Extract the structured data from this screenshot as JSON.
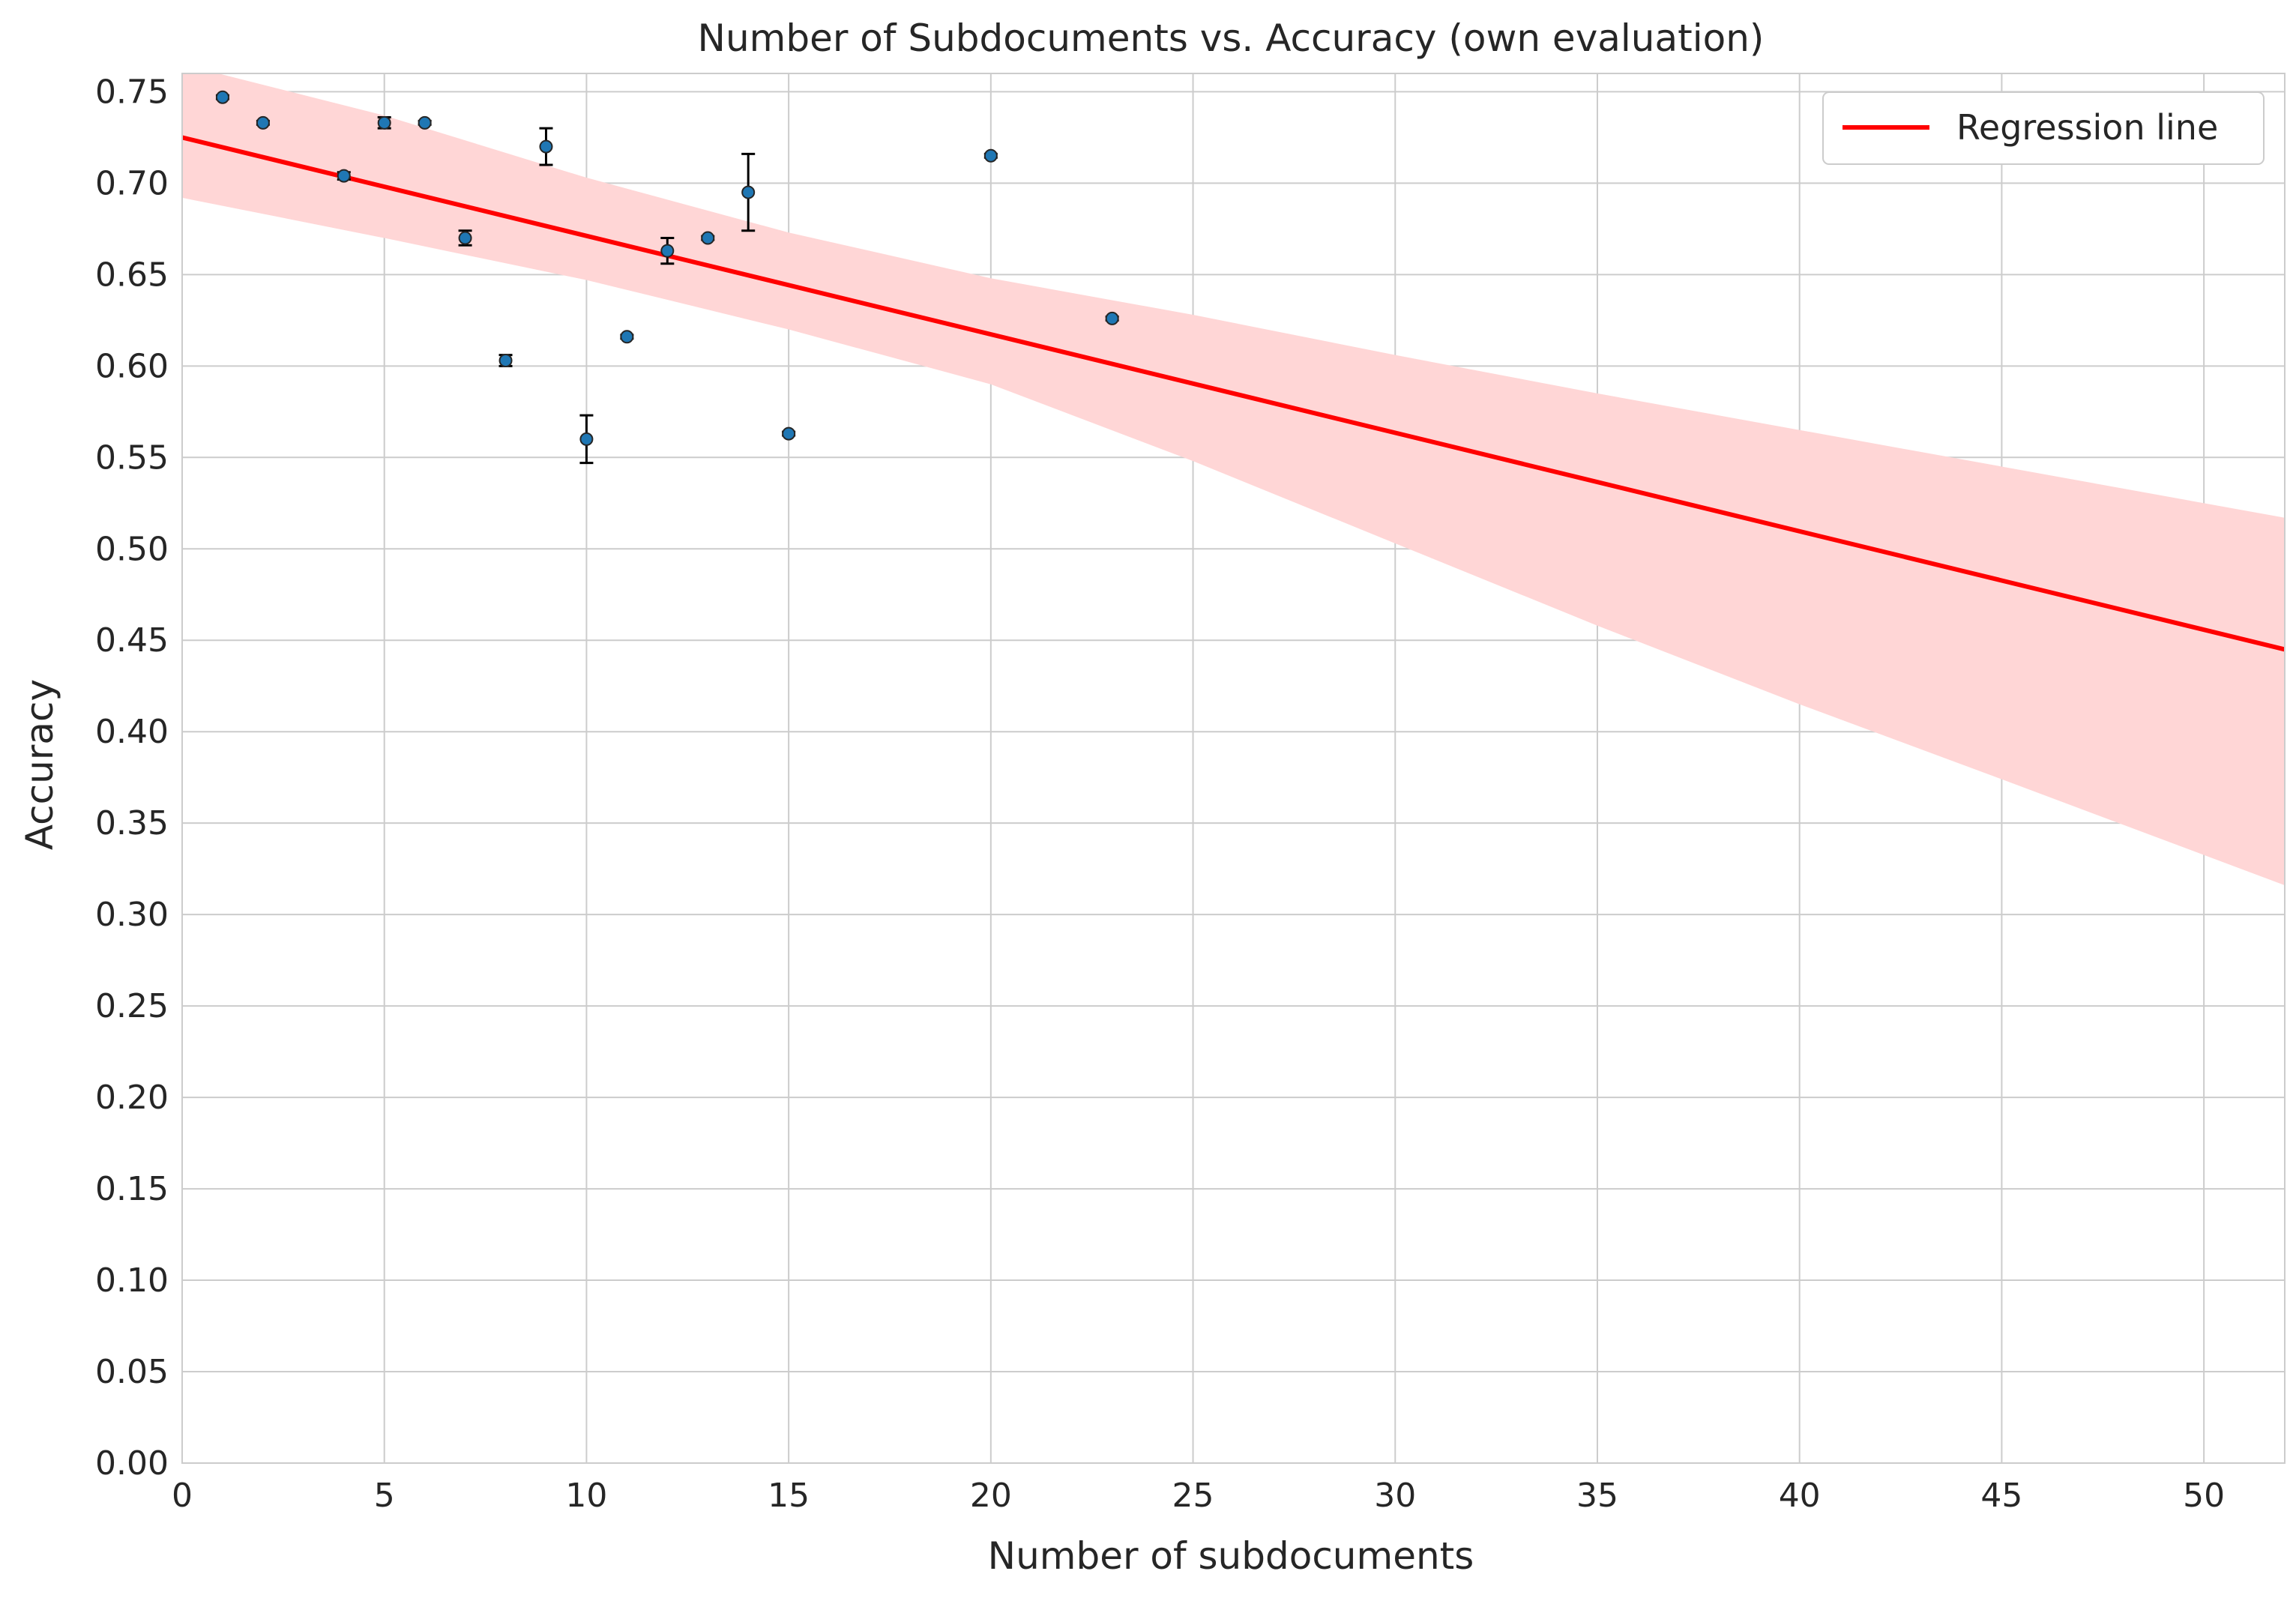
{
  "chart_data": {
    "type": "scatter",
    "title": "Number of Subdocuments vs. Accuracy (own evaluation)",
    "xlabel": "Number of subdocuments",
    "ylabel": "Accuracy",
    "xlim": [
      0,
      52
    ],
    "ylim": [
      0,
      0.76
    ],
    "xticks": [
      0,
      5,
      10,
      15,
      20,
      25,
      30,
      35,
      40,
      45,
      50
    ],
    "yticks": [
      0.0,
      0.05,
      0.1,
      0.15,
      0.2,
      0.25,
      0.3,
      0.35,
      0.4,
      0.45,
      0.5,
      0.55,
      0.6,
      0.65,
      0.7,
      0.75
    ],
    "xtick_labels": [
      "0",
      "5",
      "10",
      "15",
      "20",
      "25",
      "30",
      "35",
      "40",
      "45",
      "50"
    ],
    "ytick_labels": [
      "0.00",
      "0.05",
      "0.10",
      "0.15",
      "0.20",
      "0.25",
      "0.30",
      "0.35",
      "0.40",
      "0.45",
      "0.50",
      "0.55",
      "0.60",
      "0.65",
      "0.70",
      "0.75"
    ],
    "grid": true,
    "legend_position": "top-right",
    "points": [
      {
        "x": 1,
        "y": 0.747,
        "err": 0.001
      },
      {
        "x": 2,
        "y": 0.733,
        "err": 0.001
      },
      {
        "x": 4,
        "y": 0.704,
        "err": 0.002
      },
      {
        "x": 5,
        "y": 0.733,
        "err": 0.003
      },
      {
        "x": 6,
        "y": 0.733,
        "err": 0.001
      },
      {
        "x": 7,
        "y": 0.67,
        "err": 0.004
      },
      {
        "x": 8,
        "y": 0.603,
        "err": 0.003
      },
      {
        "x": 9,
        "y": 0.72,
        "err": 0.01
      },
      {
        "x": 10,
        "y": 0.56,
        "err": 0.013
      },
      {
        "x": 11,
        "y": 0.616,
        "err": 0.001
      },
      {
        "x": 12,
        "y": 0.663,
        "err": 0.007
      },
      {
        "x": 13,
        "y": 0.67,
        "err": 0.001
      },
      {
        "x": 14,
        "y": 0.695,
        "err": 0.021
      },
      {
        "x": 15,
        "y": 0.563,
        "err": 0.001
      },
      {
        "x": 20,
        "y": 0.715,
        "err": 0.001
      },
      {
        "x": 23,
        "y": 0.626,
        "err": 0.001
      }
    ],
    "regression": {
      "name": "Regression line",
      "x": [
        0,
        52
      ],
      "y": [
        0.725,
        0.445
      ]
    },
    "confidence_band": {
      "x": [
        0,
        5,
        10,
        15,
        20,
        25,
        30,
        35,
        40,
        45,
        52
      ],
      "lower": [
        0.692,
        0.67,
        0.647,
        0.62,
        0.59,
        0.548,
        0.503,
        0.458,
        0.415,
        0.374,
        0.316
      ],
      "upper": [
        0.765,
        0.737,
        0.703,
        0.673,
        0.648,
        0.628,
        0.606,
        0.585,
        0.565,
        0.545,
        0.517
      ]
    },
    "colors": {
      "points": "#1f77b4",
      "point_edge": "#262626",
      "error_bars": "#000000",
      "regression": "#ff0000",
      "band": "#ffd6d6",
      "grid": "#cccccc"
    }
  }
}
